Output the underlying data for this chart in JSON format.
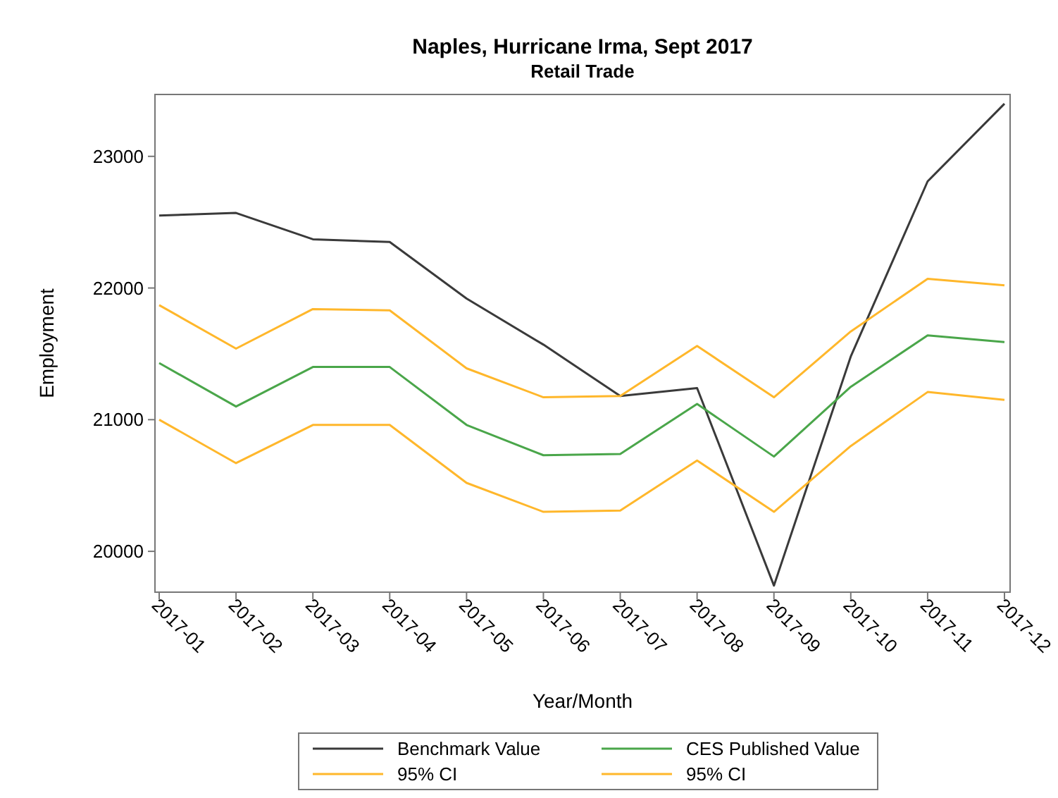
{
  "chart_data": {
    "type": "line",
    "title": "Naples, Hurricane Irma, Sept 2017",
    "subtitle": "Retail Trade",
    "xlabel": "Year/Month",
    "ylabel": "Employment",
    "categories": [
      "2017-01",
      "2017-02",
      "2017-03",
      "2017-04",
      "2017-05",
      "2017-06",
      "2017-07",
      "2017-08",
      "2017-09",
      "2017-10",
      "2017-11",
      "2017-12"
    ],
    "series": [
      {
        "name": "Benchmark Value",
        "color": "#3a3a3a",
        "values": [
          22550,
          22570,
          22370,
          22350,
          21920,
          21570,
          21180,
          21240,
          19740,
          21480,
          22810,
          23400
        ]
      },
      {
        "name": "CES Published Value",
        "color": "#4aa64a",
        "values": [
          21430,
          21100,
          21400,
          21400,
          20960,
          20730,
          20740,
          21120,
          20720,
          21250,
          21640,
          21590
        ]
      },
      {
        "name": "95% CI",
        "color": "#ffb72b",
        "values": [
          21870,
          21540,
          21840,
          21830,
          21390,
          21170,
          21180,
          21560,
          21170,
          21670,
          22070,
          22020
        ]
      },
      {
        "name": "95% CI",
        "color": "#ffb72b",
        "values": [
          21000,
          20670,
          20960,
          20960,
          20520,
          20300,
          20310,
          20690,
          20300,
          20800,
          21210,
          21150
        ]
      }
    ],
    "ylim": [
      19690,
      23470
    ],
    "yticks": [
      20000,
      21000,
      22000,
      23000
    ],
    "grid": false,
    "legend": "bottom",
    "marker": "none",
    "line_style": "solid"
  }
}
